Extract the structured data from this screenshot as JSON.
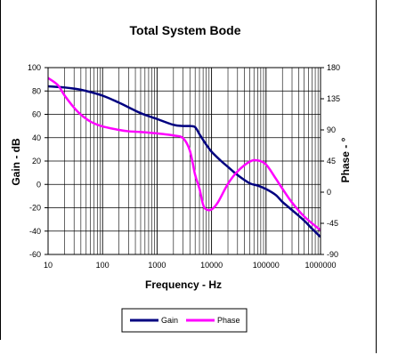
{
  "chart_data": {
    "type": "line",
    "title": "Total System Bode",
    "xlabel": "Frequency  - Hz",
    "ylabel_left": "Gain  - dB",
    "ylabel_right": "Phase - °",
    "x_scale": "log",
    "xlim": [
      10,
      1000000
    ],
    "x_ticks": [
      10,
      100,
      1000,
      10000,
      100000,
      1000000
    ],
    "x_tick_labels": [
      "10",
      "100",
      "1000",
      "10000",
      "100000",
      "1000000"
    ],
    "y_left_lim": [
      -60,
      100
    ],
    "y_left_ticks": [
      -60,
      -40,
      -20,
      0,
      20,
      40,
      60,
      80,
      100
    ],
    "y_left_tick_labels": [
      "-60",
      "-40",
      "-20",
      "0",
      "20",
      "40",
      "60",
      "80",
      "100"
    ],
    "y_right_lim": [
      -90,
      180
    ],
    "y_right_ticks": [
      -90,
      -45,
      0,
      45,
      90,
      135,
      180
    ],
    "y_right_tick_labels": [
      "-90",
      "-45",
      "0",
      "45",
      "90",
      "135",
      "180"
    ],
    "grid": true,
    "legend_position": "bottom-center",
    "series": [
      {
        "name": "Gain",
        "axis": "left",
        "color": "#000080",
        "x": [
          10,
          20,
          30,
          50,
          100,
          200,
          300,
          500,
          1000,
          2000,
          3000,
          4000,
          5000,
          6000,
          8000,
          10000,
          15000,
          20000,
          30000,
          50000,
          70000,
          100000,
          150000,
          200000,
          300000,
          500000,
          700000,
          1000000
        ],
        "values": [
          84,
          83,
          82,
          80,
          76,
          70,
          66,
          61,
          56,
          51,
          50,
          50,
          49,
          43,
          34,
          28,
          20,
          15,
          8,
          1,
          -1,
          -4,
          -9,
          -15,
          -22,
          -31,
          -38,
          -45
        ]
      },
      {
        "name": "Phase",
        "axis": "right",
        "color": "#ff00ff",
        "x": [
          10,
          15,
          20,
          30,
          40,
          60,
          100,
          200,
          300,
          500,
          1000,
          2000,
          3000,
          4000,
          5000,
          6000,
          7000,
          8000,
          10000,
          13000,
          20000,
          30000,
          50000,
          70000,
          100000,
          150000,
          200000,
          300000,
          500000,
          1000000
        ],
        "values": [
          165,
          155,
          140,
          122,
          112,
          102,
          95,
          90,
          88,
          87,
          85,
          82,
          78,
          60,
          25,
          5,
          -18,
          -25,
          -25,
          -15,
          12,
          30,
          44,
          46,
          40,
          20,
          5,
          -15,
          -35,
          -55
        ]
      }
    ]
  }
}
